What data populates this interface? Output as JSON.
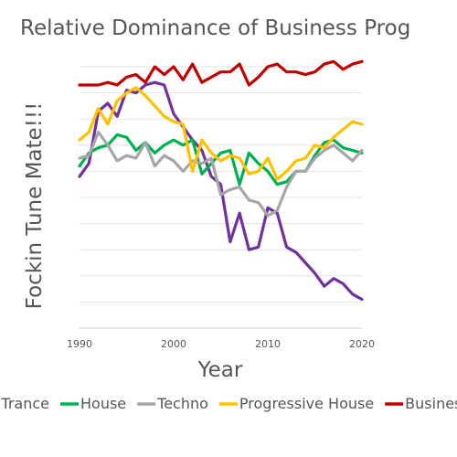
{
  "chart_data": {
    "type": "line",
    "title": "Relative Dominance of Business Prog",
    "xlabel": "Year",
    "ylabel": "Fockin Tune Mate!!!",
    "xlim": [
      1990,
      2020
    ],
    "ylim": [
      0,
      10
    ],
    "y_ticks_shown": false,
    "x_ticks": [
      "1990",
      "2000",
      "2010",
      "2020"
    ],
    "grid": true,
    "legend_position": "bottom",
    "x": [
      1990,
      1991,
      1992,
      1993,
      1994,
      1995,
      1996,
      1997,
      1998,
      1999,
      2000,
      2001,
      2002,
      2003,
      2004,
      2005,
      2006,
      2007,
      2008,
      2009,
      2010,
      2011,
      2012,
      2013,
      2014,
      2015,
      2016,
      2017,
      2018,
      2019,
      2020
    ],
    "series": [
      {
        "name": "Trance",
        "color": "#7030a0",
        "values": [
          5.8,
          6.3,
          8.3,
          8.6,
          8.1,
          9.1,
          9.0,
          9.3,
          9.4,
          9.3,
          8.2,
          7.7,
          7.2,
          6.8,
          5.8,
          5.5,
          3.3,
          4.4,
          3.0,
          3.1,
          4.6,
          4.4,
          3.1,
          2.9,
          2.5,
          2.1,
          1.6,
          1.9,
          1.7,
          1.3,
          1.1
        ]
      },
      {
        "name": "House",
        "color": "#00b050",
        "values": [
          6.2,
          6.7,
          6.9,
          7.0,
          7.4,
          7.3,
          6.8,
          7.1,
          6.7,
          7.0,
          7.2,
          7.0,
          7.2,
          5.9,
          6.3,
          6.7,
          6.8,
          5.5,
          6.7,
          6.3,
          6.0,
          5.5,
          5.6,
          6.0,
          6.0,
          6.6,
          7.1,
          7.2,
          6.9,
          6.8,
          6.7
        ]
      },
      {
        "name": "Techno",
        "color": "#a6a6a6",
        "values": [
          6.5,
          6.6,
          7.5,
          7.0,
          6.4,
          6.6,
          6.5,
          7.1,
          6.2,
          6.6,
          6.4,
          6.0,
          6.4,
          6.3,
          6.5,
          5.1,
          5.3,
          5.4,
          4.9,
          4.8,
          4.3,
          4.5,
          5.4,
          6.0,
          6.0,
          6.5,
          6.8,
          7.0,
          6.7,
          6.4,
          6.8
        ]
      },
      {
        "name": "Progressive House",
        "color": "#ffc000",
        "values": [
          7.2,
          7.5,
          8.4,
          7.8,
          8.7,
          9.0,
          9.2,
          8.9,
          8.5,
          8.1,
          7.9,
          7.8,
          6.0,
          7.2,
          6.7,
          6.4,
          6.6,
          6.5,
          5.9,
          6.0,
          6.5,
          5.7,
          6.0,
          6.4,
          6.5,
          7.0,
          6.9,
          7.3,
          7.6,
          7.9,
          7.8
        ]
      },
      {
        "name": "Business Prog",
        "color": "#c00000",
        "values": [
          9.3,
          9.3,
          9.3,
          9.4,
          9.3,
          9.6,
          9.7,
          9.4,
          10.0,
          9.7,
          10.0,
          9.5,
          10.1,
          9.4,
          9.6,
          9.8,
          9.8,
          10.1,
          9.3,
          9.6,
          10.0,
          10.1,
          9.8,
          9.8,
          9.7,
          9.8,
          10.1,
          10.2,
          9.9,
          10.1,
          10.2
        ]
      }
    ]
  }
}
